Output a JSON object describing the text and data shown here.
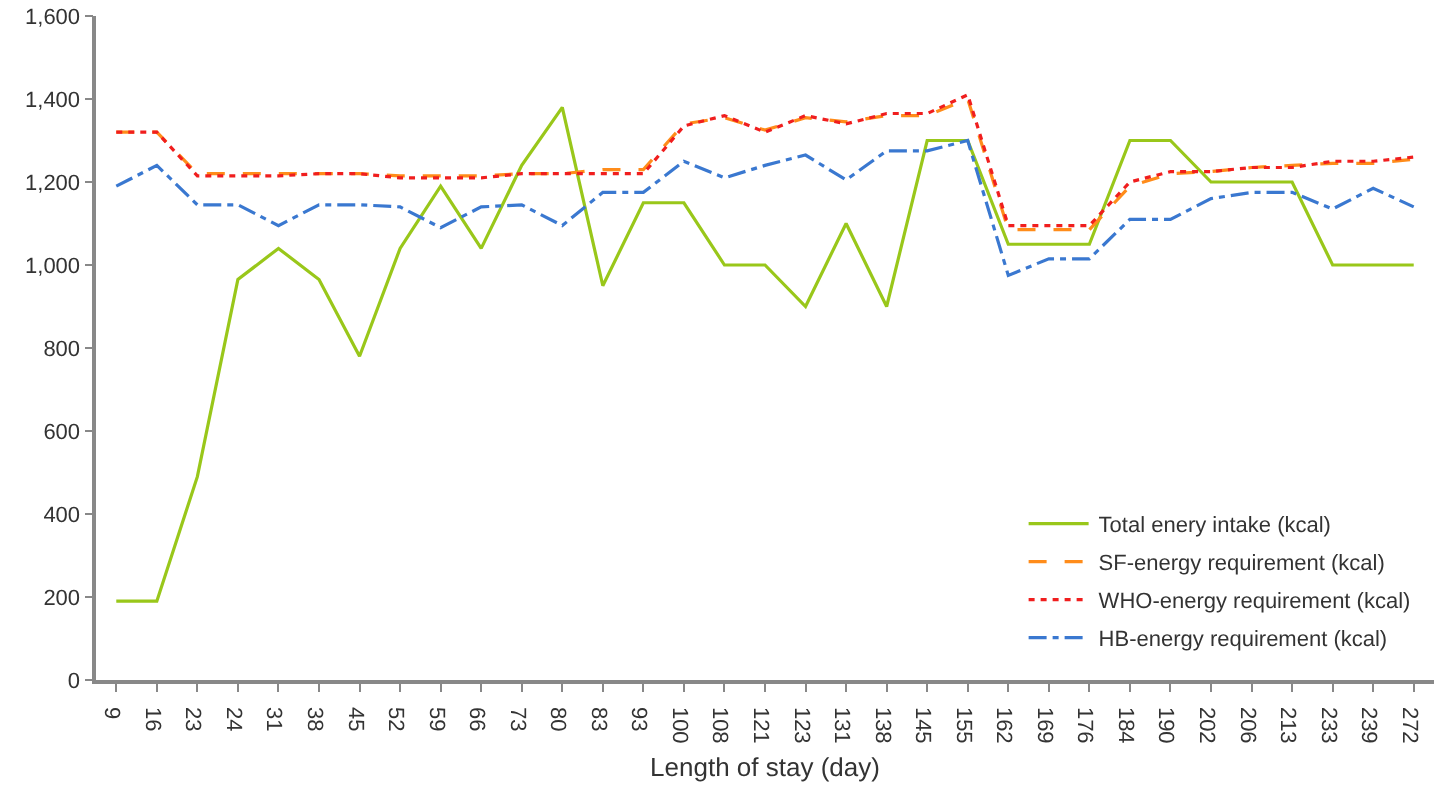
{
  "chart_data": {
    "type": "line",
    "xlabel": "Length of stay (day)",
    "categories": [
      "9",
      "16",
      "23",
      "24",
      "31",
      "38",
      "45",
      "52",
      "59",
      "66",
      "73",
      "80",
      "83",
      "93",
      "100",
      "108",
      "121",
      "123",
      "131",
      "138",
      "145",
      "155",
      "162",
      "169",
      "176",
      "184",
      "190",
      "202",
      "206",
      "213",
      "233",
      "239",
      "272"
    ],
    "series": [
      {
        "name": "Total enery intake (kcal)",
        "color": "#99c71a",
        "line_style": "solid",
        "values": [
          190,
          190,
          490,
          965,
          1040,
          965,
          780,
          1040,
          1190,
          1040,
          1240,
          1380,
          950,
          1150,
          1150,
          1000,
          1000,
          900,
          1100,
          900,
          1300,
          1300,
          1050,
          1050,
          1050,
          1300,
          1300,
          1200,
          1200,
          1200,
          1000,
          1000,
          1000
        ]
      },
      {
        "name": "SF-energy requirement (kcal)",
        "color": "#ff8c1a",
        "line_style": "dashed",
        "values": [
          1320,
          1320,
          1220,
          1220,
          1220,
          1220,
          1220,
          1215,
          1215,
          1215,
          1220,
          1220,
          1230,
          1230,
          1340,
          1355,
          1325,
          1355,
          1345,
          1360,
          1360,
          1400,
          1085,
          1085,
          1085,
          1190,
          1220,
          1225,
          1235,
          1240,
          1245,
          1245,
          1255
        ]
      },
      {
        "name": "WHO-energy requirement (kcal)",
        "color": "#f01e1e",
        "line_style": "dotted",
        "values": [
          1320,
          1320,
          1215,
          1215,
          1215,
          1220,
          1220,
          1210,
          1210,
          1210,
          1220,
          1220,
          1220,
          1220,
          1335,
          1360,
          1320,
          1360,
          1340,
          1365,
          1365,
          1410,
          1095,
          1095,
          1095,
          1200,
          1225,
          1225,
          1235,
          1235,
          1250,
          1250,
          1260
        ]
      },
      {
        "name": "HB-energy requirement (kcal)",
        "color": "#3a78d0",
        "line_style": "dashdot",
        "values": [
          1190,
          1240,
          1145,
          1145,
          1095,
          1145,
          1145,
          1140,
          1090,
          1140,
          1145,
          1095,
          1175,
          1175,
          1250,
          1210,
          1240,
          1265,
          1205,
          1275,
          1275,
          1300,
          975,
          1015,
          1015,
          1110,
          1110,
          1160,
          1175,
          1175,
          1135,
          1185,
          1140
        ]
      }
    ],
    "ylim": [
      0,
      1600
    ],
    "yticks": [
      {
        "value": 0,
        "label": "0"
      },
      {
        "value": 200,
        "label": "200"
      },
      {
        "value": 400,
        "label": "400"
      },
      {
        "value": 600,
        "label": "600"
      },
      {
        "value": 800,
        "label": "800"
      },
      {
        "value": 1000,
        "label": "1,000"
      },
      {
        "value": 1200,
        "label": "1,200"
      },
      {
        "value": 1400,
        "label": "1,400"
      },
      {
        "value": 1600,
        "label": "1,600"
      }
    ],
    "grid": false,
    "legend": "bottom right",
    "marker": "none"
  }
}
